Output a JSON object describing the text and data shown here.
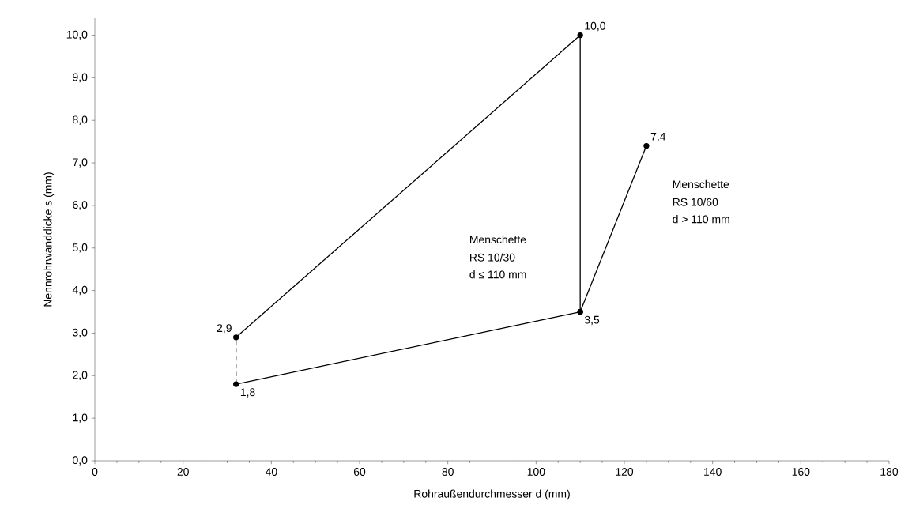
{
  "chart_data": {
    "type": "line",
    "xlabel": "Rohraußendurchmesser d (mm)",
    "ylabel": "Nennrohrwanddicke s (mm)",
    "xlim": [
      0,
      180
    ],
    "ylim": [
      0,
      10.4
    ],
    "xticks": [
      0,
      20,
      40,
      60,
      80,
      100,
      120,
      140,
      160,
      180
    ],
    "yticks": [
      {
        "value": 0,
        "label": "0,0"
      },
      {
        "value": 1,
        "label": "1,0"
      },
      {
        "value": 2,
        "label": "2,0"
      },
      {
        "value": 3,
        "label": "3,0"
      },
      {
        "value": 4,
        "label": "4,0"
      },
      {
        "value": 5,
        "label": "5,0"
      },
      {
        "value": 6,
        "label": "6,0"
      },
      {
        "value": 7,
        "label": "7,0"
      },
      {
        "value": 8,
        "label": "8,0"
      },
      {
        "value": 9,
        "label": "9,0"
      },
      {
        "value": 10,
        "label": "10,0"
      }
    ],
    "marker": "circle",
    "series": [
      {
        "color": "#000000",
        "x": [
          32,
          110,
          110,
          32
        ],
        "values": [
          2.9,
          10.0,
          3.5,
          1.8
        ],
        "value_labels": [
          "2,9",
          "10,0",
          "3,5",
          "1,8"
        ]
      },
      {
        "color": "#000000",
        "x": [
          32,
          32
        ],
        "values": [
          1.8,
          2.9
        ],
        "line_style": "dashed",
        "marker": "none"
      },
      {
        "color": "#000000",
        "x": [
          110,
          125
        ],
        "values": [
          3.5,
          7.4
        ],
        "value_labels": [
          null,
          "7,4"
        ]
      }
    ],
    "annotations": [
      "Menschette",
      "RS 10/30",
      "d ≤ 110 mm",
      "Menschette",
      "RS 10/60",
      "d > 110 mm"
    ]
  }
}
